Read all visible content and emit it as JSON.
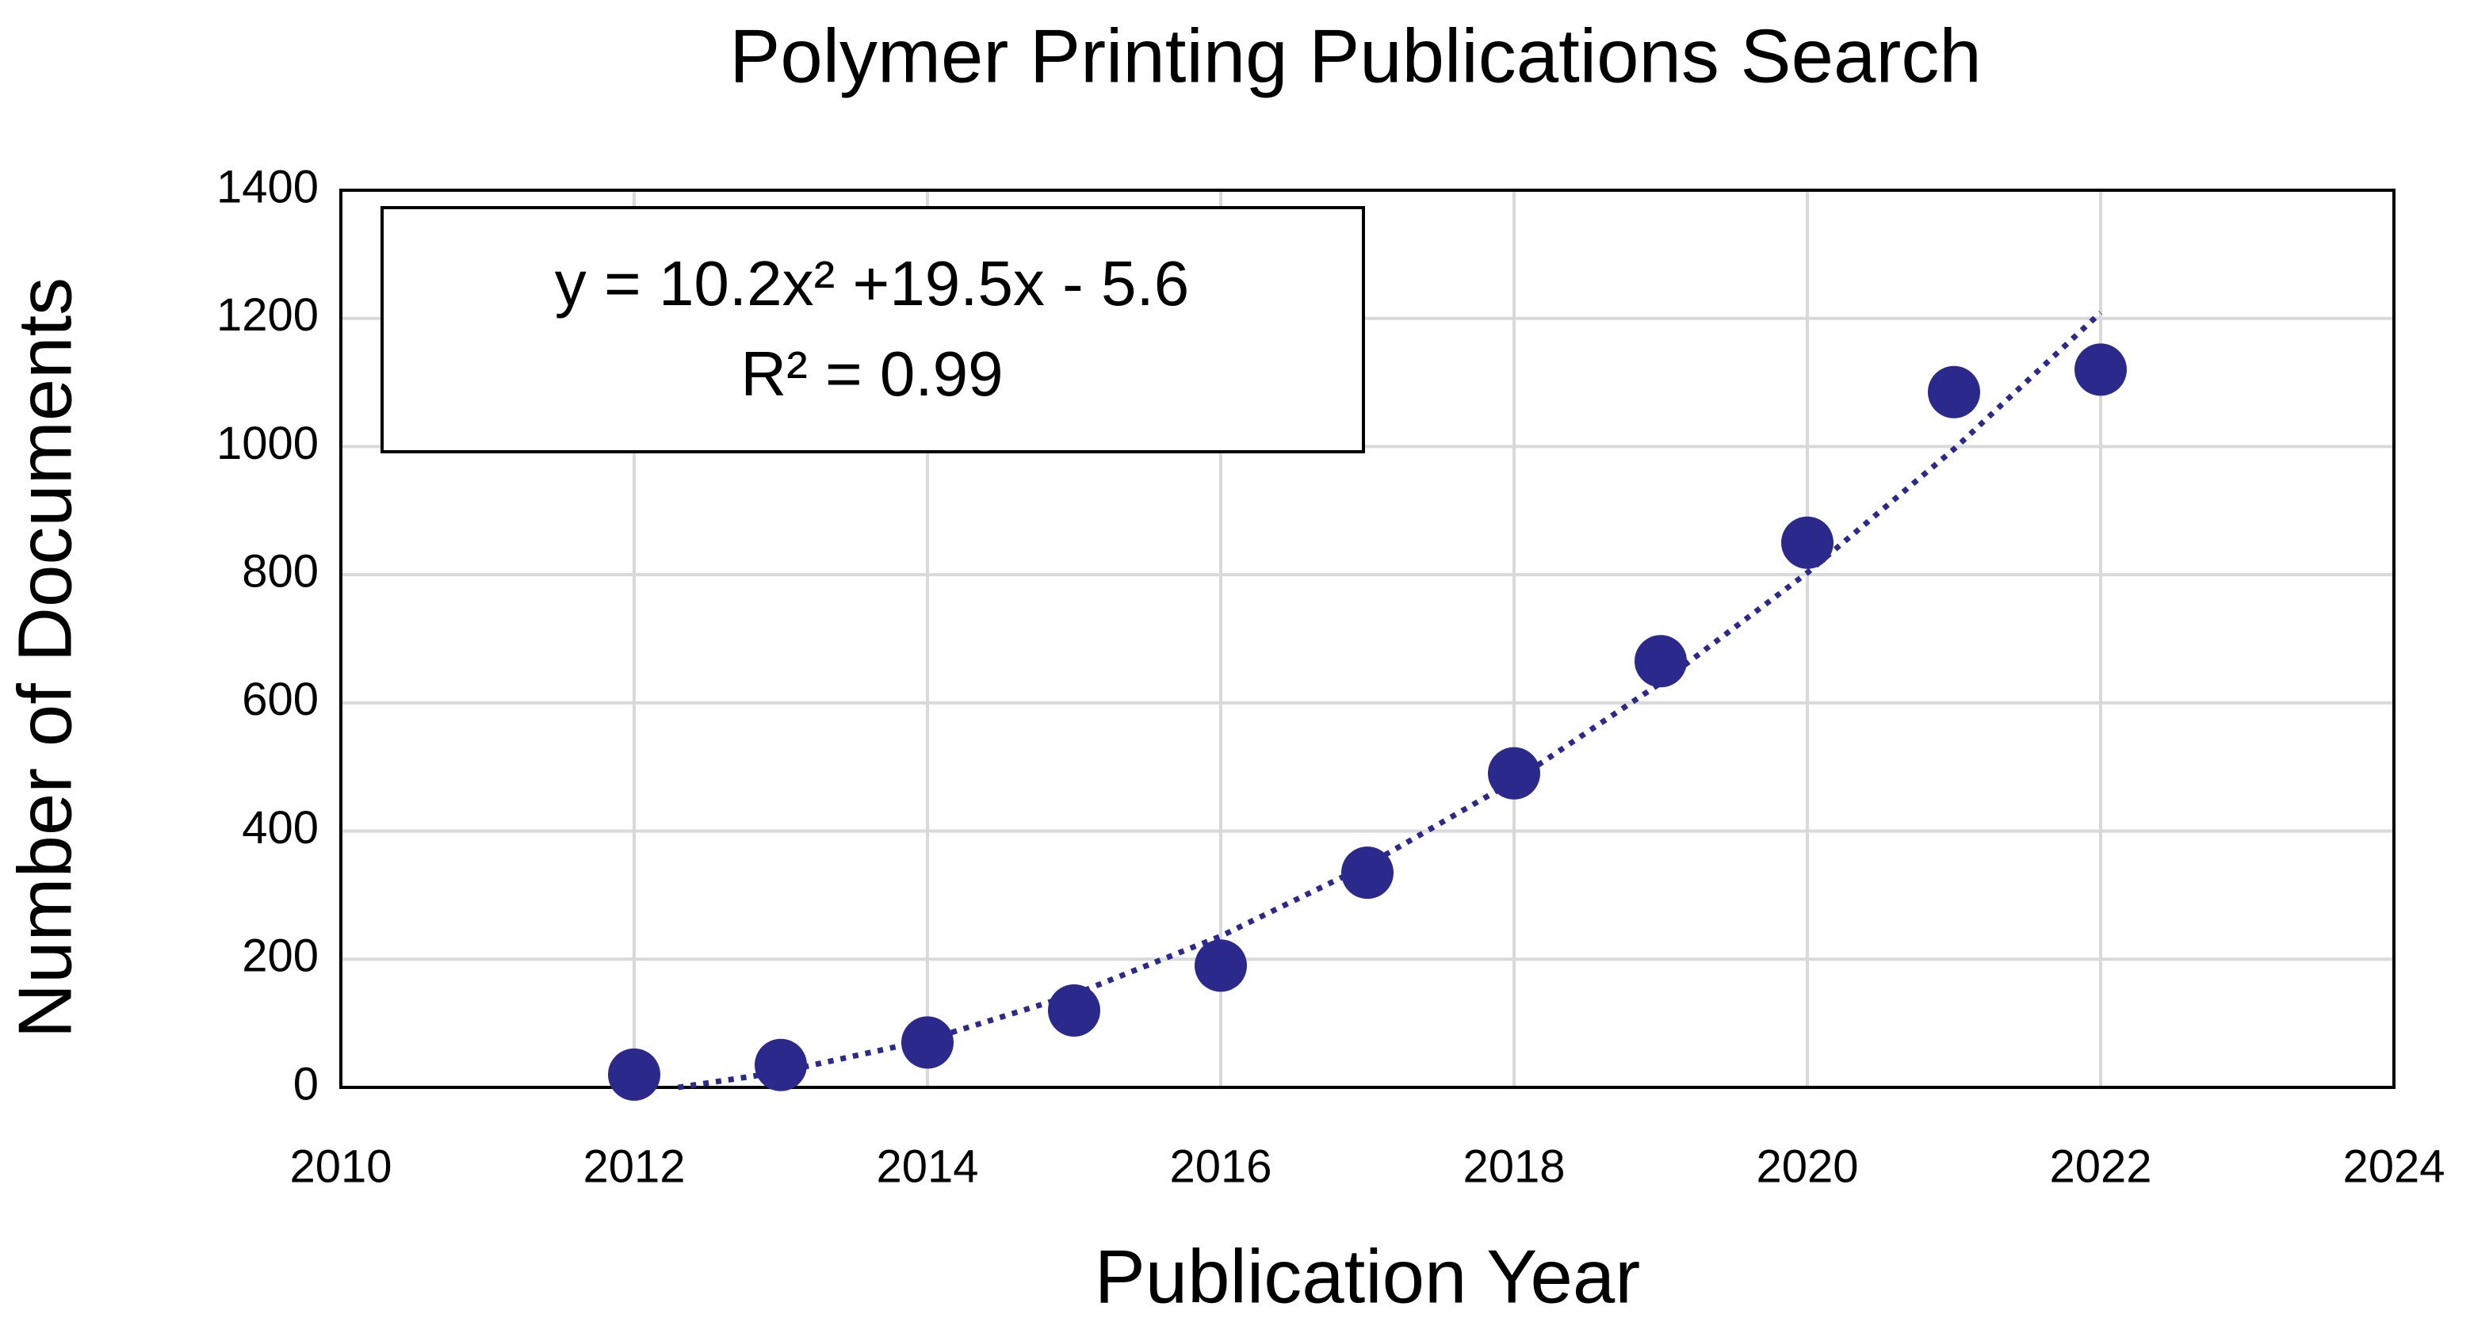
{
  "chart_data": {
    "type": "scatter",
    "title": "Polymer Printing Publications Search",
    "x_label": "Publication Year",
    "y_label": "Number of Documents",
    "annotation": [
      "y = 10.2x² +19.5x - 5.6",
      "R² = 0.99"
    ],
    "series": [
      {
        "name": "Documents",
        "color": "#2b2a8c",
        "x": [
          2012,
          2013,
          2014,
          2015,
          2016,
          2017,
          2018,
          2019,
          2020,
          2021,
          2022
        ],
        "values": [
          20,
          35,
          70,
          120,
          190,
          335,
          490,
          665,
          850,
          1085,
          1120
        ]
      }
    ],
    "trendline": {
      "color": "#2b2a8c",
      "x": [
        2012.3,
        2013,
        2014,
        2015,
        2016,
        2017,
        2018,
        2019,
        2020,
        2021,
        2022
      ],
      "values": [
        0,
        24,
        74,
        145,
        236,
        347,
        478,
        631,
        803,
        996,
        1209
      ]
    },
    "xlim": [
      2010,
      2024
    ],
    "xticks": [
      2010,
      2012,
      2014,
      2016,
      2018,
      2020,
      2022,
      2024
    ],
    "ylim": [
      0,
      1400
    ],
    "yticks": [
      0,
      200,
      400,
      600,
      800,
      1000,
      1200,
      1400
    ],
    "grid": true
  }
}
